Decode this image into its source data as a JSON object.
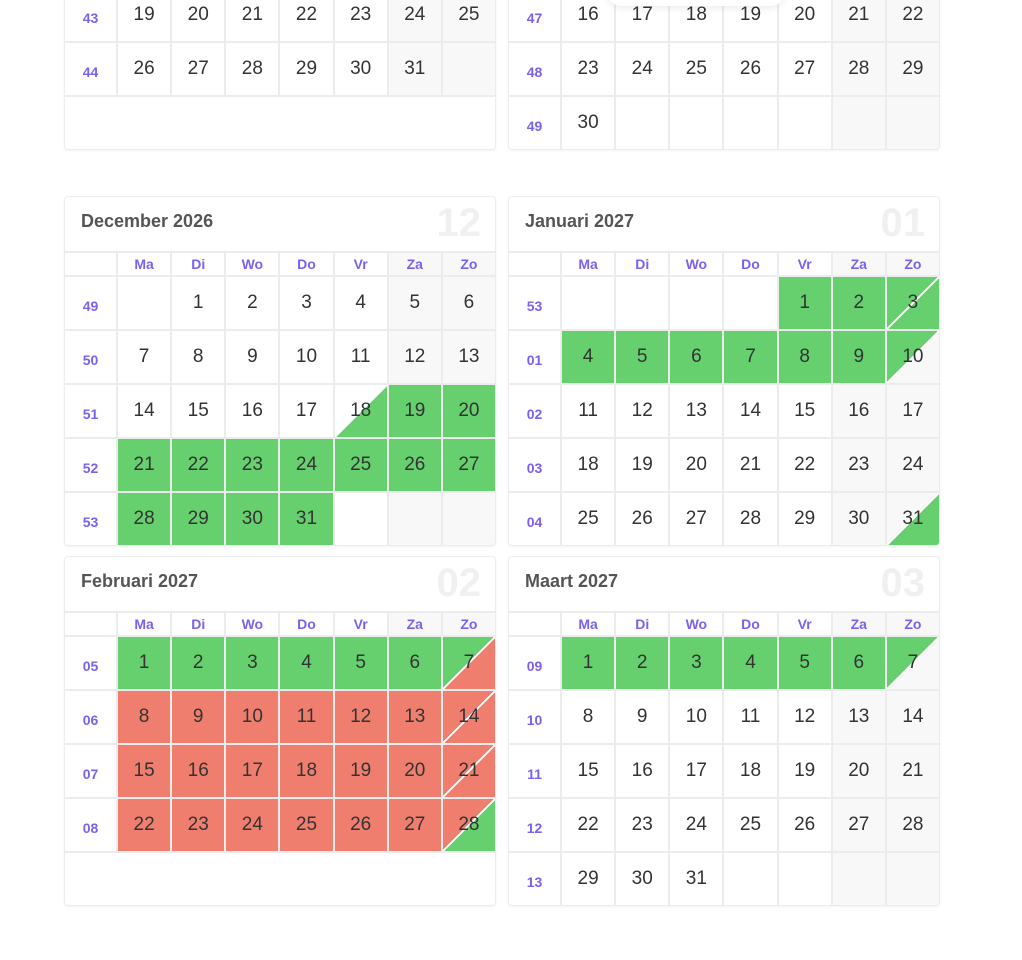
{
  "colors": {
    "green": "#66cf6e",
    "red": "#f07e6e",
    "weekend": "#f8f8f8",
    "weekday": "#ffffff",
    "week_number": "#7b61ee"
  },
  "day_names": [
    "Ma",
    "Di",
    "Wo",
    "Do",
    "Vr",
    "Za",
    "Zo"
  ],
  "months": [
    {
      "id": "oct",
      "title": "",
      "number": "",
      "partial": true,
      "trailing_empty": true,
      "weeks": [
        {
          "num": "43",
          "days": [
            19,
            20,
            21,
            22,
            23,
            24,
            25
          ]
        },
        {
          "num": "44",
          "days": [
            26,
            27,
            28,
            29,
            30,
            31,
            null
          ]
        }
      ],
      "marks": {}
    },
    {
      "id": "nov",
      "title": "",
      "number": "",
      "partial": true,
      "trailing_empty": false,
      "weeks": [
        {
          "num": "47",
          "days": [
            16,
            17,
            18,
            19,
            20,
            21,
            22
          ]
        },
        {
          "num": "48",
          "days": [
            23,
            24,
            25,
            26,
            27,
            28,
            29
          ]
        },
        {
          "num": "49",
          "days": [
            30,
            null,
            null,
            null,
            null,
            null,
            null
          ]
        }
      ],
      "marks": {}
    },
    {
      "id": "dec",
      "title": "December 2026",
      "number": "12",
      "trailing_empty": false,
      "weeks": [
        {
          "num": "49",
          "days": [
            null,
            1,
            2,
            3,
            4,
            5,
            6
          ]
        },
        {
          "num": "50",
          "days": [
            7,
            8,
            9,
            10,
            11,
            12,
            13
          ]
        },
        {
          "num": "51",
          "days": [
            14,
            15,
            16,
            17,
            18,
            19,
            20
          ]
        },
        {
          "num": "52",
          "days": [
            21,
            22,
            23,
            24,
            25,
            26,
            27
          ]
        },
        {
          "num": "53",
          "days": [
            28,
            29,
            30,
            31,
            null,
            null,
            null
          ]
        }
      ],
      "marks": {
        "18": {
          "ul": null,
          "lr": "green"
        },
        "19": "green",
        "20": "green",
        "21": "green",
        "22": "green",
        "23": "green",
        "24": "green",
        "25": "green",
        "26": "green",
        "27": "green",
        "28": "green",
        "29": "green",
        "30": "green",
        "31": "green"
      }
    },
    {
      "id": "jan",
      "title": "Januari 2027",
      "number": "01",
      "trailing_empty": false,
      "weeks": [
        {
          "num": "53",
          "days": [
            null,
            null,
            null,
            null,
            1,
            2,
            3
          ]
        },
        {
          "num": "01",
          "days": [
            4,
            5,
            6,
            7,
            8,
            9,
            10
          ]
        },
        {
          "num": "02",
          "days": [
            11,
            12,
            13,
            14,
            15,
            16,
            17
          ]
        },
        {
          "num": "03",
          "days": [
            18,
            19,
            20,
            21,
            22,
            23,
            24
          ]
        },
        {
          "num": "04",
          "days": [
            25,
            26,
            27,
            28,
            29,
            30,
            31
          ]
        }
      ],
      "marks": {
        "1": "green",
        "2": "green",
        "3": {
          "ul": "green",
          "lr": "green"
        },
        "4": "green",
        "5": "green",
        "6": "green",
        "7": "green",
        "8": "green",
        "9": "green",
        "10": {
          "ul": "green",
          "lr": null
        },
        "31": {
          "ul": null,
          "lr": "green"
        }
      }
    },
    {
      "id": "feb",
      "title": "Februari 2027",
      "number": "02",
      "trailing_empty": true,
      "weeks": [
        {
          "num": "05",
          "days": [
            1,
            2,
            3,
            4,
            5,
            6,
            7
          ]
        },
        {
          "num": "06",
          "days": [
            8,
            9,
            10,
            11,
            12,
            13,
            14
          ]
        },
        {
          "num": "07",
          "days": [
            15,
            16,
            17,
            18,
            19,
            20,
            21
          ]
        },
        {
          "num": "08",
          "days": [
            22,
            23,
            24,
            25,
            26,
            27,
            28
          ]
        }
      ],
      "marks": {
        "1": "green",
        "2": "green",
        "3": "green",
        "4": "green",
        "5": "green",
        "6": "green",
        "7": {
          "ul": "green",
          "lr": "red"
        },
        "8": "red",
        "9": "red",
        "10": "red",
        "11": "red",
        "12": "red",
        "13": "red",
        "14": {
          "ul": "red",
          "lr": "red"
        },
        "15": "red",
        "16": "red",
        "17": "red",
        "18": "red",
        "19": "red",
        "20": "red",
        "21": {
          "ul": "red",
          "lr": "red"
        },
        "22": "red",
        "23": "red",
        "24": "red",
        "25": "red",
        "26": "red",
        "27": "red",
        "28": {
          "ul": "red",
          "lr": "green"
        }
      }
    },
    {
      "id": "mar",
      "title": "Maart 2027",
      "number": "03",
      "trailing_empty": false,
      "weeks": [
        {
          "num": "09",
          "days": [
            1,
            2,
            3,
            4,
            5,
            6,
            7
          ]
        },
        {
          "num": "10",
          "days": [
            8,
            9,
            10,
            11,
            12,
            13,
            14
          ]
        },
        {
          "num": "11",
          "days": [
            15,
            16,
            17,
            18,
            19,
            20,
            21
          ]
        },
        {
          "num": "12",
          "days": [
            22,
            23,
            24,
            25,
            26,
            27,
            28
          ]
        },
        {
          "num": "13",
          "days": [
            29,
            30,
            31,
            null,
            null,
            null,
            null
          ]
        }
      ],
      "marks": {
        "1": "green",
        "2": "green",
        "3": "green",
        "4": "green",
        "5": "green",
        "6": "green",
        "7": {
          "ul": "green",
          "lr": null
        }
      }
    }
  ]
}
